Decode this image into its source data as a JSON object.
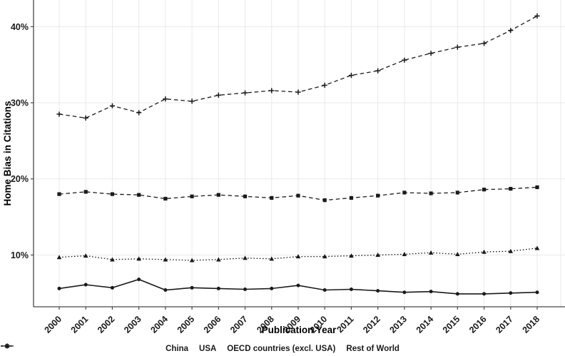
{
  "chart_data": {
    "type": "line",
    "title": "",
    "xlabel": "Publication Year",
    "ylabel": "Home Bias in Citations",
    "x": [
      2000,
      2001,
      2002,
      2003,
      2004,
      2005,
      2006,
      2007,
      2008,
      2009,
      2010,
      2011,
      2012,
      2013,
      2014,
      2015,
      2016,
      2017,
      2018
    ],
    "x_tick_labels": [
      "2000",
      "2001",
      "2002",
      "2003",
      "2004",
      "2005",
      "2006",
      "2007",
      "2008",
      "2009",
      "2010",
      "2011",
      "2012",
      "2013",
      "2014",
      "2015",
      "2016",
      "2017",
      "2018"
    ],
    "y_ticks": [
      10,
      20,
      30,
      40
    ],
    "y_tick_labels": [
      "10%",
      "20%",
      "30%",
      "40%"
    ],
    "ylim": [
      3.2,
      43.5
    ],
    "grid": true,
    "legend_position": "bottom",
    "series": [
      {
        "name": "China",
        "marker": "plus",
        "line_style": "dashed",
        "values": [
          28.5,
          28.0,
          29.6,
          28.7,
          30.5,
          30.2,
          31.0,
          31.3,
          31.6,
          31.4,
          32.3,
          33.6,
          34.2,
          35.6,
          36.5,
          37.3,
          37.8,
          39.5,
          41.4
        ]
      },
      {
        "name": "USA",
        "marker": "square",
        "line_style": "dashed",
        "values": [
          18.0,
          18.3,
          18.0,
          17.9,
          17.4,
          17.7,
          17.9,
          17.7,
          17.5,
          17.8,
          17.2,
          17.5,
          17.8,
          18.2,
          18.1,
          18.2,
          18.6,
          18.7,
          18.9
        ]
      },
      {
        "name": "OECD countries (excl. USA)",
        "marker": "triangle",
        "line_style": "dotted",
        "values": [
          9.7,
          9.9,
          9.4,
          9.5,
          9.4,
          9.3,
          9.4,
          9.6,
          9.5,
          9.8,
          9.8,
          9.9,
          10.0,
          10.1,
          10.3,
          10.1,
          10.4,
          10.5,
          10.9
        ]
      },
      {
        "name": "Rest of World",
        "marker": "circle",
        "line_style": "solid",
        "values": [
          5.6,
          6.1,
          5.7,
          6.8,
          5.4,
          5.7,
          5.6,
          5.5,
          5.6,
          6.0,
          5.4,
          5.5,
          5.3,
          5.1,
          5.2,
          4.9,
          4.9,
          5.0,
          5.1
        ]
      }
    ],
    "colors": {
      "line": "#1a1a1a",
      "grid": "#e9e9e9",
      "axis": "#474747",
      "text": "#1a1a1a",
      "background": "#ffffff"
    }
  }
}
